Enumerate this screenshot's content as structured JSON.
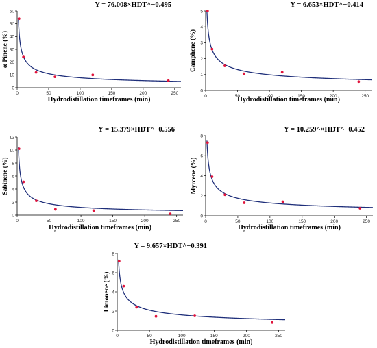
{
  "chart_data": [
    {
      "type": "scatter",
      "equation": "Y = 76.008×HDT^−0.495",
      "xlabel": "Hydrodistillation timeframes (min)",
      "ylabel": "α-Pinene (%)",
      "xlim": [
        0,
        260
      ],
      "ylim": [
        0,
        60
      ],
      "xticks": [
        0,
        50,
        100,
        150,
        200,
        250
      ],
      "yticks": [
        0,
        10,
        20,
        30,
        40,
        50,
        60
      ],
      "points": {
        "x": [
          3,
          10,
          30,
          60,
          120,
          240
        ],
        "y": [
          54,
          24,
          12,
          8.5,
          10,
          5.5
        ]
      },
      "fit": {
        "a": 76.008,
        "b": -0.495
      }
    },
    {
      "type": "scatter",
      "equation": "Y = 6.653×HDT^−0.414",
      "xlabel": "Hydrodistillation timeframes (min)",
      "ylabel": "Camphene (%)",
      "xlim": [
        0,
        260
      ],
      "ylim": [
        0,
        5
      ],
      "xticks": [
        0,
        50,
        100,
        150,
        200,
        250
      ],
      "yticks": [
        0,
        1,
        2,
        3,
        4,
        5
      ],
      "points": {
        "x": [
          3,
          10,
          30,
          60,
          120,
          240
        ],
        "y": [
          5.0,
          2.6,
          1.55,
          1.05,
          1.15,
          0.55
        ]
      },
      "fit": {
        "a": 6.653,
        "b": -0.414
      }
    },
    {
      "type": "scatter",
      "equation": "Y = 15.379×HDT^−0.556",
      "xlabel": "Hydrodistillation timeframes (min)",
      "ylabel": "Sabinene (%)",
      "xlim": [
        0,
        260
      ],
      "ylim": [
        0,
        12
      ],
      "xticks": [
        0,
        50,
        100,
        150,
        200,
        250
      ],
      "yticks": [
        0,
        2,
        4,
        6,
        8,
        10,
        12
      ],
      "points": {
        "x": [
          3,
          10,
          30,
          60,
          120,
          240
        ],
        "y": [
          10.2,
          5.1,
          2.2,
          0.9,
          0.7,
          0.2
        ]
      },
      "fit": {
        "a": 15.379,
        "b": -0.556
      }
    },
    {
      "type": "scatter",
      "equation": "Y = 10.259^×HDT^−0.452",
      "xlabel": "Hydrodistillation timeframes (min)",
      "ylabel": "Myrcene (%)",
      "xlim": [
        0,
        260
      ],
      "ylim": [
        0,
        8
      ],
      "xticks": [
        0,
        50,
        100,
        150,
        200,
        250
      ],
      "yticks": [
        0,
        2,
        4,
        6,
        8
      ],
      "points": {
        "x": [
          3,
          10,
          30,
          60,
          120,
          240
        ],
        "y": [
          7.3,
          3.9,
          2.1,
          1.3,
          1.4,
          0.75
        ]
      },
      "fit": {
        "a": 10.259,
        "b": -0.452
      }
    },
    {
      "type": "scatter",
      "equation": "Y = 9.657×HDT^−0.391",
      "xlabel": "Hydrodistillation timeframes (min)",
      "ylabel": "Limonene (%)",
      "xlim": [
        0,
        260
      ],
      "ylim": [
        0,
        8
      ],
      "xticks": [
        0,
        50,
        100,
        150,
        200,
        250
      ],
      "yticks": [
        0,
        2,
        4,
        6,
        8
      ],
      "points": {
        "x": [
          3,
          10,
          30,
          60,
          120,
          240
        ],
        "y": [
          7.2,
          4.6,
          2.4,
          1.45,
          1.5,
          0.8
        ]
      },
      "fit": {
        "a": 9.657,
        "b": -0.391
      }
    }
  ]
}
